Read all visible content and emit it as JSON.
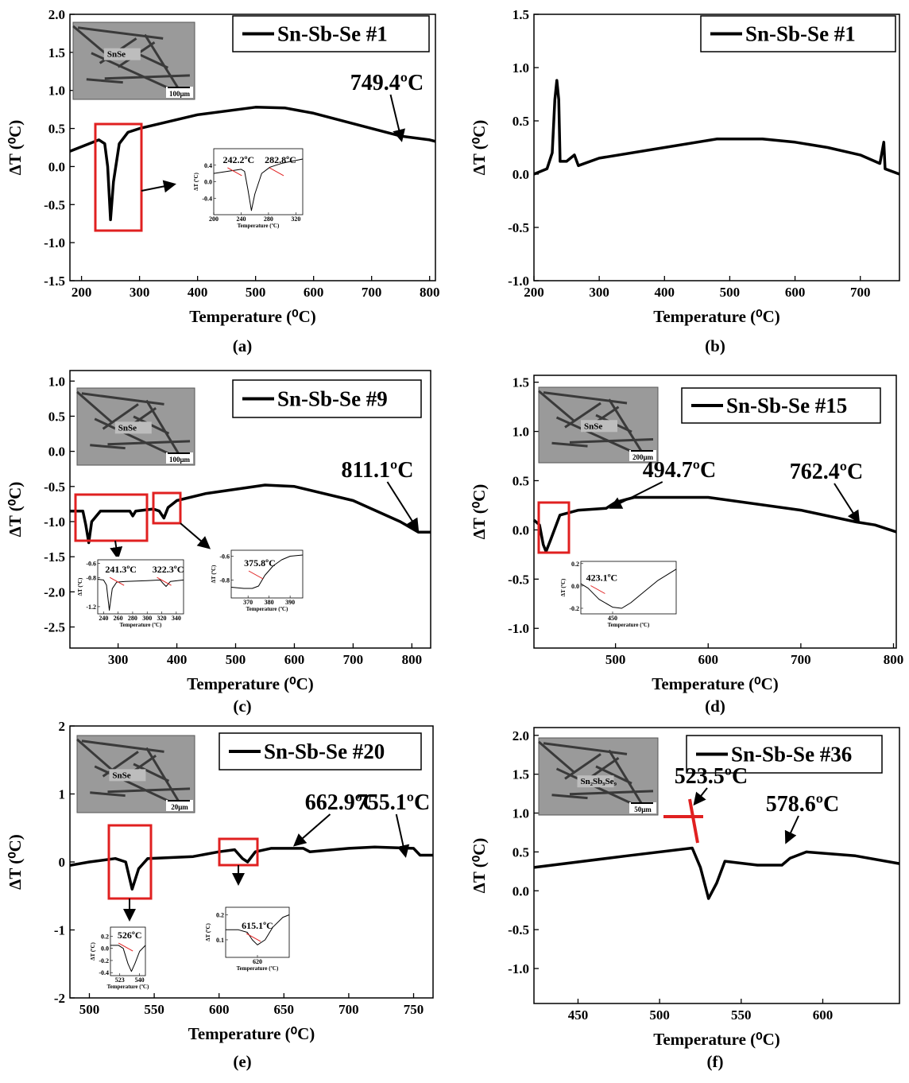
{
  "chart_data": [
    {
      "type": "line",
      "panel": "(a)",
      "xlabel": "Temperature (⁰C)",
      "ylabel": "ΔT (⁰C)",
      "xlim": [
        180,
        810
      ],
      "ylim": [
        -1.5,
        2.0
      ],
      "xticks": [
        200,
        300,
        400,
        500,
        600,
        700,
        800
      ],
      "yticks": [
        -1.5,
        {
          "value": -1,
          "label": "-1.0"
        },
        -0.5,
        {
          "value": 0,
          "label": "0.0"
        },
        0.5,
        {
          "value": 1,
          "label": "1.0"
        },
        1.5,
        {
          "value": 2,
          "label": "2.0"
        }
      ],
      "series": [
        {
          "name": "Sn-Sb-Se #1",
          "color": "#000000",
          "x": [
            180,
            230,
            240,
            245,
            250,
            255,
            265,
            280,
            300,
            400,
            500,
            550,
            600,
            700,
            750,
            800,
            810
          ],
          "values": [
            0.2,
            0.35,
            0.3,
            0,
            -0.7,
            -0.2,
            0.3,
            0.45,
            0.5,
            0.68,
            0.78,
            0.77,
            0.7,
            0.5,
            0.4,
            0.35,
            0.33
          ]
        }
      ],
      "annotations": [
        "749.4ºC"
      ],
      "image_labels": [
        "SnSe",
        "100μm"
      ],
      "insets": [
        {
          "xlabel": "Temperature (ºC)",
          "ylabel": "ΔT (ºC)",
          "xlim": [
            200,
            330
          ],
          "ylim": [
            -0.8,
            0.8
          ],
          "xticks": [
            200,
            240,
            280,
            320
          ],
          "yticks": [
            -0.4,
            {
              "value": 0,
              "label": "0.0"
            },
            0.4
          ],
          "x": [
            200,
            240,
            245,
            250,
            255,
            260,
            270,
            282,
            300,
            330
          ],
          "values": [
            0.2,
            0.3,
            0.25,
            -0.2,
            -0.7,
            -0.3,
            0.2,
            0.35,
            0.45,
            0.55
          ],
          "annotations": [
            "242.2ºC",
            "282.8ºC"
          ]
        }
      ]
    },
    {
      "type": "line",
      "panel": "(b)",
      "xlabel": "Temperature (⁰C)",
      "ylabel": "ΔT (⁰C)",
      "xlim": [
        200,
        760
      ],
      "ylim": [
        -1.0,
        1.5
      ],
      "xticks": [
        200,
        300,
        400,
        500,
        600,
        700
      ],
      "yticks": [
        {
          "value": -1,
          "label": "-1.0"
        },
        -0.5,
        {
          "value": 0,
          "label": "0.0"
        },
        0.5,
        {
          "value": 1,
          "label": "1.0"
        },
        1.5
      ],
      "series": [
        {
          "name": "Sn-Sb-Se #1",
          "color": "#000000",
          "x": [
            200,
            220,
            228,
            232,
            235,
            238,
            240,
            250,
            262,
            268,
            300,
            400,
            480,
            550,
            600,
            650,
            700,
            730,
            736,
            738,
            760
          ],
          "values": [
            0,
            0.05,
            0.2,
            0.7,
            0.88,
            0.7,
            0.12,
            0.12,
            0.18,
            0.08,
            0.15,
            0.25,
            0.33,
            0.33,
            0.3,
            0.25,
            0.18,
            0.1,
            0.3,
            0.05,
            0
          ]
        }
      ],
      "annotations": [],
      "image_labels": [],
      "insets": []
    },
    {
      "type": "line",
      "panel": "(c)",
      "xlabel": "Temperature (⁰C)",
      "ylabel": "ΔT (⁰C)",
      "xlim": [
        218,
        832
      ],
      "ylim": [
        -2.8,
        1.15
      ],
      "xticks": [
        300,
        400,
        500,
        600,
        700,
        800
      ],
      "yticks": [
        -2.5,
        {
          "value": -2,
          "label": "-2.0"
        },
        -1.5,
        {
          "value": -1,
          "label": "-1.0"
        },
        -0.5,
        {
          "value": 0,
          "label": "0.0"
        },
        0.5,
        {
          "value": 1,
          "label": "1.0"
        }
      ],
      "series": [
        {
          "name": "Sn-Sb-Se #9",
          "color": "#000000",
          "x": [
            218,
            240,
            245,
            250,
            255,
            270,
            320,
            325,
            330,
            360,
            370,
            378,
            385,
            400,
            450,
            550,
            600,
            700,
            780,
            811,
            832
          ],
          "values": [
            -0.85,
            -0.85,
            -1.05,
            -1.3,
            -1.0,
            -0.85,
            -0.85,
            -0.92,
            -0.85,
            -0.82,
            -0.85,
            -0.95,
            -0.8,
            -0.7,
            -0.6,
            -0.48,
            -0.5,
            -0.7,
            -1.0,
            -1.15,
            -1.15
          ]
        }
      ],
      "annotations": [
        "811.1ºC"
      ],
      "image_labels": [
        "SnSe",
        "100μm"
      ],
      "insets": [
        {
          "xlabel": "Temperature (ºC)",
          "ylabel": "ΔT (ºC)",
          "xlim": [
            232,
            350
          ],
          "ylim": [
            -1.3,
            -0.55
          ],
          "xticks": [
            240,
            260,
            280,
            300,
            320,
            340
          ],
          "yticks": [
            -1.2,
            -0.8,
            -0.6
          ],
          "x": [
            232,
            240,
            244,
            248,
            252,
            258,
            270,
            300,
            318,
            322,
            326,
            332,
            350
          ],
          "values": [
            -0.82,
            -0.83,
            -0.9,
            -1.25,
            -0.95,
            -0.86,
            -0.85,
            -0.84,
            -0.83,
            -0.88,
            -0.92,
            -0.85,
            -0.83
          ],
          "annotations": [
            "241.3ºC",
            "322.3ºC"
          ]
        },
        {
          "xlabel": "Temperature (ºC)",
          "ylabel": "ΔT (ºC)",
          "xlim": [
            362,
            396
          ],
          "ylim": [
            -0.95,
            -0.55
          ],
          "xticks": [
            370,
            380,
            390
          ],
          "yticks": [
            -0.8,
            -0.6
          ],
          "x": [
            362,
            368,
            372,
            375,
            378,
            382,
            386,
            390,
            396
          ],
          "values": [
            -0.86,
            -0.87,
            -0.87,
            -0.85,
            -0.76,
            -0.68,
            -0.63,
            -0.6,
            -0.59
          ],
          "annotations": [
            "375.8ºC"
          ]
        }
      ]
    },
    {
      "type": "line",
      "panel": "(d)",
      "xlabel": "Temperature (⁰C)",
      "ylabel": "ΔT (⁰C)",
      "xlim": [
        412,
        803
      ],
      "ylim": [
        -1.2,
        1.57
      ],
      "xticks": [
        500,
        600,
        700,
        800
      ],
      "yticks": [
        {
          "value": -1,
          "label": "-1.0"
        },
        -0.5,
        {
          "value": 0,
          "label": "0.0"
        },
        0.5,
        {
          "value": 1,
          "label": "1.0"
        },
        1.5
      ],
      "series": [
        {
          "name": "Sn-Sb-Se #15",
          "color": "#000000",
          "x": [
            412,
            418,
            422,
            425,
            430,
            440,
            460,
            490,
            500,
            520,
            600,
            700,
            760,
            780,
            803
          ],
          "values": [
            0.1,
            0.05,
            -0.15,
            -0.22,
            -0.1,
            0.15,
            0.2,
            0.22,
            0.28,
            0.33,
            0.33,
            0.2,
            0.08,
            0.05,
            -0.02
          ]
        }
      ],
      "annotations": [
        "494.7ºC",
        "762.4ºC"
      ],
      "image_labels": [
        "SnSe",
        "200μm"
      ],
      "insets": [
        {
          "xlabel": "Temperature (ºC)",
          "ylabel": "ΔT (ºC)",
          "xlim": [
            415,
            520
          ],
          "ylim": [
            -0.25,
            0.22
          ],
          "xticks": [
            450
          ],
          "yticks": [
            -0.2,
            {
              "value": 0,
              "label": "0.0"
            },
            0.2
          ],
          "x": [
            415,
            423,
            435,
            450,
            460,
            470,
            485,
            500,
            520
          ],
          "values": [
            0.02,
            -0.02,
            -0.12,
            -0.19,
            -0.2,
            -0.15,
            -0.05,
            0.05,
            0.15
          ],
          "annotations": [
            "423.1ºC"
          ]
        }
      ]
    },
    {
      "type": "line",
      "panel": "(e)",
      "xlabel": "Temperature (⁰C)",
      "ylabel": "ΔT (⁰C)",
      "xlim": [
        485,
        765
      ],
      "ylim": [
        -2,
        2
      ],
      "xticks": [
        500,
        550,
        600,
        650,
        700,
        750
      ],
      "yticks": [
        -2,
        -1,
        0,
        1,
        2
      ],
      "series": [
        {
          "name": "Sn-Sb-Se #20",
          "color": "#000000",
          "x": [
            485,
            500,
            520,
            528,
            533,
            538,
            545,
            580,
            600,
            612,
            618,
            622,
            628,
            640,
            665,
            670,
            700,
            720,
            750,
            755,
            765
          ],
          "values": [
            -0.05,
            0,
            0.05,
            0,
            -0.4,
            -0.1,
            0.05,
            0.08,
            0.15,
            0.18,
            0.05,
            0,
            0.15,
            0.2,
            0.2,
            0.15,
            0.2,
            0.22,
            0.2,
            0.1,
            0.1
          ]
        }
      ],
      "annotations": [
        "662.9ºC",
        "755.1ºC"
      ],
      "image_labels": [
        "SnSe",
        "20μm"
      ],
      "insets": [
        {
          "xlabel": "Temperature (ºC)",
          "ylabel": "ΔT (ºC)",
          "xlim": [
            515,
            545
          ],
          "ylim": [
            -0.45,
            0.35
          ],
          "xticks": [
            523,
            540
          ],
          "yticks": [
            -0.4,
            -0.2,
            {
              "value": 0,
              "label": "0.0"
            },
            0.2
          ],
          "x": [
            515,
            522,
            526,
            530,
            533,
            536,
            540,
            545
          ],
          "values": [
            0.05,
            0.05,
            0.0,
            -0.25,
            -0.38,
            -0.25,
            -0.05,
            0.05
          ],
          "annotations": [
            "526ºC"
          ]
        },
        {
          "xlabel": "Temperature (ºC)",
          "ylabel": "ΔT (ºC)",
          "xlim": [
            595,
            645
          ],
          "ylim": [
            0.03,
            0.23
          ],
          "xticks": [
            620
          ],
          "yticks": [
            0.1,
            0.2
          ],
          "x": [
            595,
            605,
            612,
            616,
            620,
            626,
            632,
            640,
            645
          ],
          "values": [
            0.14,
            0.14,
            0.13,
            0.1,
            0.08,
            0.1,
            0.15,
            0.19,
            0.2
          ],
          "annotations": [
            "615.1ºC"
          ]
        }
      ]
    },
    {
      "type": "line",
      "panel": "(f)",
      "xlabel": "Temperature (⁰C)",
      "ylabel": "ΔT (⁰C)",
      "xlim": [
        423,
        647
      ],
      "ylim": [
        -1.45,
        2.1
      ],
      "xticks": [
        450,
        500,
        550,
        600
      ],
      "yticks": [
        {
          "value": -1,
          "label": "-1.0"
        },
        -0.5,
        {
          "value": 0,
          "label": "0.0"
        },
        0.5,
        {
          "value": 1,
          "label": "1.0"
        },
        1.5,
        {
          "value": 2,
          "label": "2.0"
        }
      ],
      "series": [
        {
          "name": "Sn-Sb-Se #36",
          "color": "#000000",
          "x": [
            423,
            480,
            520,
            525,
            530,
            535,
            540,
            560,
            575,
            580,
            590,
            620,
            647
          ],
          "values": [
            0.3,
            0.45,
            0.55,
            0.3,
            -0.1,
            0.1,
            0.38,
            0.33,
            0.33,
            0.42,
            0.5,
            0.45,
            0.35
          ]
        }
      ],
      "annotations": [
        "523.5ºC",
        "578.6ºC"
      ],
      "image_labels": [
        "Sn₂Sb₉Se₉",
        "50μm"
      ],
      "insets": []
    }
  ]
}
